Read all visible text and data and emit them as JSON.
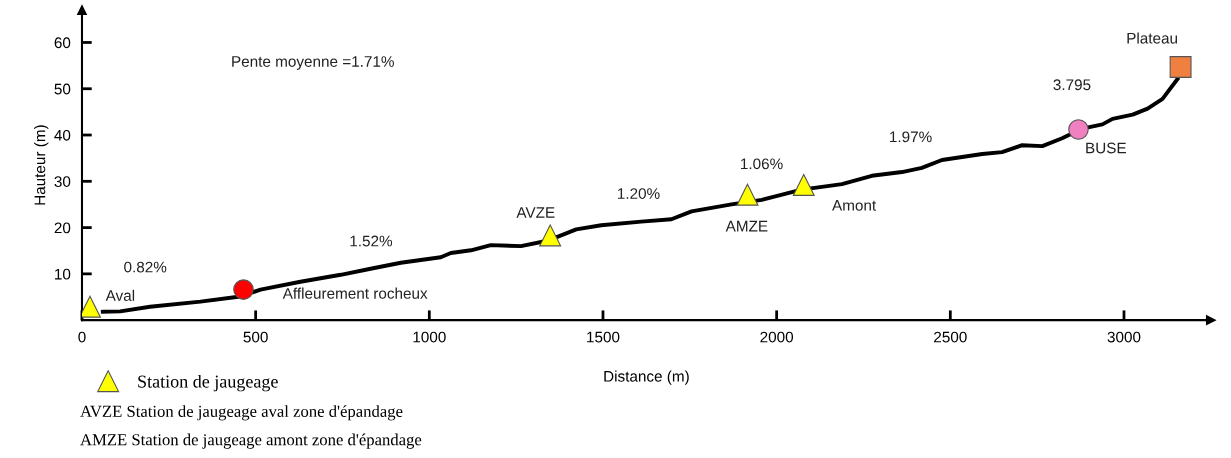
{
  "chart_data": {
    "type": "line",
    "xlabel": "Distance (m)",
    "ylabel": "Hauteur (m)",
    "xlim": [
      0,
      3250
    ],
    "ylim": [
      0,
      67
    ],
    "xticks": [
      0,
      500,
      1000,
      1500,
      2000,
      2500,
      3000
    ],
    "yticks": [
      10,
      20,
      30,
      40,
      50,
      60
    ],
    "grid": false,
    "legend": "bottom left",
    "series": [
      {
        "color": "#000000",
        "marker": "none",
        "x": [
          60,
          110,
          196,
          341,
          456,
          514,
          629,
          745,
          831,
          918,
          1033,
          1062,
          1120,
          1177,
          1264,
          1336,
          1365,
          1423,
          1495,
          1610,
          1697,
          1755,
          1870,
          1957,
          2072,
          2188,
          2274,
          2361,
          2418,
          2476,
          2592,
          2649,
          2707,
          2765,
          2822,
          2880,
          2938,
          2967,
          3025,
          3068,
          3111,
          3154
        ],
        "values": [
          1.8,
          1.9,
          2.9,
          4.0,
          5.1,
          6.6,
          8.3,
          9.8,
          11.1,
          12.4,
          13.6,
          14.5,
          15.1,
          16.2,
          16.0,
          17.1,
          17.9,
          19.6,
          20.5,
          21.3,
          21.8,
          23.5,
          25.0,
          26.0,
          28.2,
          29.4,
          31.2,
          32.0,
          32.9,
          34.6,
          35.9,
          36.3,
          37.8,
          37.6,
          39.3,
          41.4,
          42.3,
          43.5,
          44.4,
          45.7,
          47.8,
          52.1
        ]
      },
      {
        "type": "scatter",
        "name": "Station de jaugeage",
        "color": "#ffff00",
        "marker": "triangle",
        "x": [
          23,
          1348,
          1916,
          2078
        ],
        "values": [
          2.9,
          18.3,
          27.1,
          29.2
        ]
      },
      {
        "type": "scatter",
        "color": "#ff0000",
        "marker": "circle",
        "x": [
          465
        ],
        "values": [
          6.6
        ]
      },
      {
        "type": "scatter",
        "color": "#f080c0",
        "marker": "circle",
        "x": [
          2869
        ],
        "values": [
          41.2
        ]
      },
      {
        "type": "scatter",
        "color": "#f08040",
        "marker": "square",
        "x": [
          3163
        ],
        "values": [
          54.7
        ]
      }
    ],
    "annotations": [
      "Pente moyenne =1.71%",
      "0.82%",
      "Aval",
      "Affleurement rocheux",
      "1.52%",
      "AVZE",
      "1.20%",
      "1.06%",
      "AMZE",
      "Amont",
      "1.97%",
      "3.795",
      "BUSE",
      "Plateau",
      "AVZE Station de jaugeage aval zone d'épandage",
      "AMZE Station de jaugeage amont zone d'épandage"
    ]
  }
}
